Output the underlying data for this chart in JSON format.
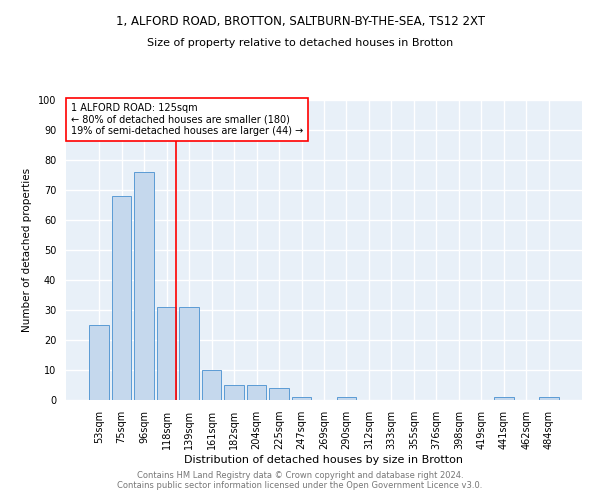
{
  "title1": "1, ALFORD ROAD, BROTTON, SALTBURN-BY-THE-SEA, TS12 2XT",
  "title2": "Size of property relative to detached houses in Brotton",
  "xlabel": "Distribution of detached houses by size in Brotton",
  "ylabel": "Number of detached properties",
  "footnote": "Contains HM Land Registry data © Crown copyright and database right 2024.\nContains public sector information licensed under the Open Government Licence v3.0.",
  "categories": [
    "53sqm",
    "75sqm",
    "96sqm",
    "118sqm",
    "139sqm",
    "161sqm",
    "182sqm",
    "204sqm",
    "225sqm",
    "247sqm",
    "269sqm",
    "290sqm",
    "312sqm",
    "333sqm",
    "355sqm",
    "376sqm",
    "398sqm",
    "419sqm",
    "441sqm",
    "462sqm",
    "484sqm"
  ],
  "values": [
    25,
    68,
    76,
    31,
    31,
    10,
    5,
    5,
    4,
    1,
    0,
    1,
    0,
    0,
    0,
    0,
    0,
    0,
    1,
    0,
    1
  ],
  "bar_color": "#c5d8ed",
  "bar_edge_color": "#5b9bd5",
  "vline_x_index": 3,
  "annotation_text": "1 ALFORD ROAD: 125sqm\n← 80% of detached houses are smaller (180)\n19% of semi-detached houses are larger (44) →",
  "box_color": "red",
  "bg_color": "#e8f0f8",
  "ylim": [
    0,
    100
  ],
  "yticks": [
    0,
    10,
    20,
    30,
    40,
    50,
    60,
    70,
    80,
    90,
    100
  ],
  "grid_color": "white",
  "title1_fontsize": 8.5,
  "title2_fontsize": 8,
  "xlabel_fontsize": 8,
  "ylabel_fontsize": 7.5,
  "tick_fontsize": 7,
  "annotation_fontsize": 7,
  "footnote_fontsize": 6,
  "footnote_color": "#777777"
}
